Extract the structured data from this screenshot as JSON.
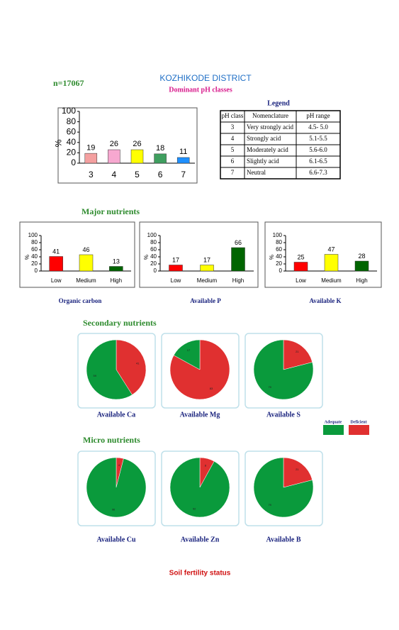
{
  "header": {
    "title": "KOZHIKODE DISTRICT",
    "subtitle": "Dominant pH classes",
    "sample": "n=17067"
  },
  "ph_legend": {
    "title": "Legend",
    "columns": [
      "pH class",
      "Nomenclature",
      "pH range"
    ],
    "rows": [
      [
        "3",
        "Very strongly acid",
        "4.5- 5.0"
      ],
      [
        "4",
        "Strongly acid",
        "5.1-5.5"
      ],
      [
        "5",
        "Moderately acid",
        "5.6-6.0"
      ],
      [
        "6",
        "Slightly acid",
        "6.1-6.5"
      ],
      [
        "7",
        "Neutral",
        "6.6-7.3"
      ]
    ]
  },
  "sections": [
    "Major nutrients",
    "Secondary nutrients",
    "Micro nutrients"
  ],
  "pie_legend": {
    "labels": [
      "Adequate",
      "Deficient"
    ],
    "colors": [
      "#0a9a3c",
      "#e03030"
    ]
  },
  "footer": "Soil fertility status",
  "chart_data": [
    {
      "type": "bar",
      "ylabel": "%",
      "categories": [
        "3",
        "4",
        "5",
        "6",
        "7"
      ],
      "values": [
        19,
        26,
        26,
        18,
        11
      ],
      "colors": [
        "#f4a0a0",
        "#f7a8d0",
        "#ffff00",
        "#3f9f5f",
        "#1e90ff"
      ],
      "ylim": [
        0,
        100
      ],
      "yticks": [
        0,
        20,
        40,
        60,
        80,
        100
      ]
    },
    {
      "type": "bar",
      "title": "Organic carbon",
      "ylabel": "%",
      "categories": [
        "Low",
        "Medium",
        "High"
      ],
      "values": [
        41,
        46,
        13
      ],
      "colors": [
        "#ff0000",
        "#ffff00",
        "#006400"
      ],
      "ylim": [
        0,
        100
      ],
      "yticks": [
        0,
        20,
        40,
        60,
        80,
        100
      ]
    },
    {
      "type": "bar",
      "title": "Available  P",
      "ylabel": "%",
      "categories": [
        "Low",
        "Medium",
        "High"
      ],
      "values": [
        17,
        17,
        66
      ],
      "colors": [
        "#ff0000",
        "#ffff00",
        "#006400"
      ],
      "ylim": [
        0,
        100
      ],
      "yticks": [
        0,
        20,
        40,
        60,
        80,
        100
      ]
    },
    {
      "type": "bar",
      "title": "Available  K",
      "ylabel": "%",
      "categories": [
        "Low",
        "Medium",
        "High"
      ],
      "values": [
        25,
        47,
        28
      ],
      "colors": [
        "#ff0000",
        "#ffff00",
        "#006400"
      ],
      "ylim": [
        0,
        100
      ],
      "yticks": [
        0,
        20,
        40,
        60,
        80,
        100
      ]
    },
    {
      "type": "pie",
      "title": "Available  Ca",
      "values": [
        59,
        41
      ]
    },
    {
      "type": "pie",
      "title": "Available  Mg",
      "values": [
        17,
        83
      ]
    },
    {
      "type": "pie",
      "title": "Available  S",
      "values": [
        79,
        21
      ]
    },
    {
      "type": "pie",
      "title": "Available Cu",
      "values": [
        96,
        4
      ]
    },
    {
      "type": "pie",
      "title": "Available  Zn",
      "values": [
        92,
        8
      ]
    },
    {
      "type": "pie",
      "title": "Available  B",
      "values": [
        79,
        21
      ]
    }
  ]
}
